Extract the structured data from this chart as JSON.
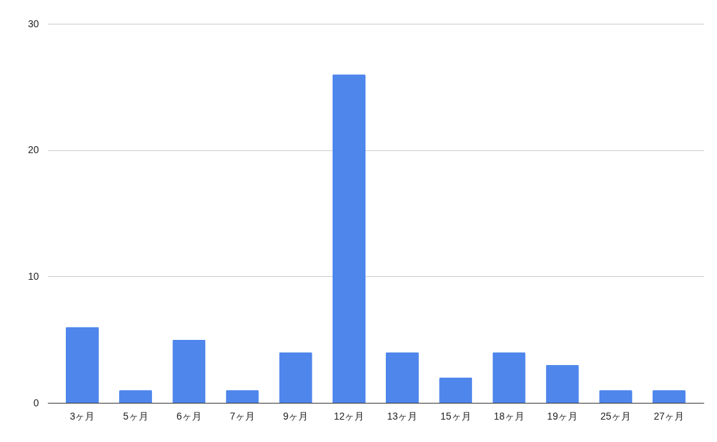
{
  "chart_data": {
    "type": "bar",
    "categories": [
      "3ヶ月",
      "5ヶ月",
      "6ヶ月",
      "7ヶ月",
      "9ヶ月",
      "12ヶ月",
      "13ヶ月",
      "15ヶ月",
      "18ヶ月",
      "19ヶ月",
      "25ヶ月",
      "27ヶ月"
    ],
    "values": [
      6,
      1,
      5,
      1,
      4,
      26,
      4,
      2,
      4,
      3,
      1,
      1
    ],
    "color": "#4f86ec",
    "ylim": [
      0,
      30
    ],
    "yticks": [
      0,
      10,
      20,
      30
    ],
    "grid": "y"
  }
}
